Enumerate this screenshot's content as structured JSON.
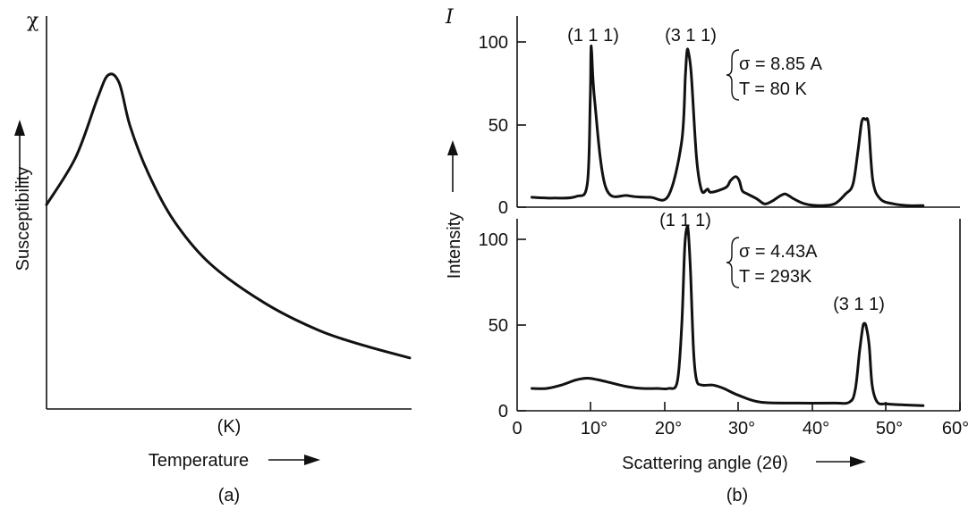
{
  "chart_data": [
    {
      "id": "a",
      "type": "line",
      "panel_label": "(a)",
      "y_symbol": "χ",
      "ylabel": "Susceptibility",
      "xlabel": "Temperature",
      "x_unit": "(K)",
      "series": [
        {
          "x": [
            0,
            0.08,
            0.14,
            0.17,
            0.2,
            0.23,
            0.28,
            0.35,
            0.45,
            0.6,
            0.75,
            0.88,
            1.0
          ],
          "y": [
            0.52,
            0.64,
            0.79,
            0.85,
            0.83,
            0.72,
            0.6,
            0.48,
            0.37,
            0.27,
            0.2,
            0.16,
            0.13
          ]
        }
      ]
    },
    {
      "id": "b",
      "type": "line",
      "panel_label": "(b)",
      "y_symbol": "I",
      "ylabel": "Intensity",
      "xlabel": "Scattering angle (2θ)",
      "x_ticks": [
        "0",
        "10°",
        "20°",
        "30°",
        "40°",
        "50°",
        "60°"
      ],
      "xlim": [
        0,
        60
      ],
      "panels": [
        {
          "ylim": [
            0,
            110
          ],
          "y_ticks": [
            "0",
            "50",
            "100"
          ],
          "params": [
            "σ = 8.85 A",
            "T = 80 K"
          ],
          "peaks": [
            {
              "label": "(1 1 1)",
              "x": 10,
              "y": 94
            },
            {
              "label": "(3 1 1)",
              "x": 23,
              "y": 94
            }
          ],
          "x": [
            2,
            5,
            8,
            9.5,
            9.9,
            10,
            10.1,
            10.5,
            12,
            15,
            18,
            20.5,
            22.3,
            22.8,
            23,
            23.2,
            23.6,
            24.3,
            25,
            25.8,
            26.3,
            28.3,
            28.9,
            29.6,
            30.1,
            30.5,
            31.2,
            32.5,
            33.5,
            34.5,
            35.5,
            36.2,
            36.8,
            37.5,
            39,
            41,
            43,
            44.5,
            45.5,
            46.2,
            46.7,
            47.2,
            47.6,
            48.2,
            49.2,
            51,
            53,
            55
          ],
          "y": [
            6,
            5.5,
            6.5,
            14,
            65,
            94,
            94,
            65,
            12,
            7,
            6,
            7,
            40,
            80,
            94,
            94,
            80,
            30,
            10,
            11,
            9,
            12,
            16,
            18.5,
            16,
            10,
            8,
            5,
            2,
            3.5,
            6.5,
            8,
            7,
            5,
            2,
            1,
            2,
            8,
            14,
            35,
            52,
            53,
            50,
            16,
            5,
            2,
            1,
            1
          ]
        },
        {
          "ylim": [
            0,
            110
          ],
          "y_ticks": [
            "0",
            "50",
            "100"
          ],
          "params": [
            "σ = 4.43A",
            "T = 293K"
          ],
          "peaks": [
            {
              "label": "(1 1 1)",
              "x": 23,
              "y": 107
            },
            {
              "label": "(3 1 1)",
              "x": 47,
              "y": 51
            }
          ],
          "x": [
            2,
            4,
            6,
            8,
            9.5,
            11,
            13,
            15,
            17,
            19,
            20.5,
            21.7,
            22.3,
            22.7,
            23,
            23.2,
            23.5,
            23.9,
            24.3,
            25,
            26.5,
            28,
            30,
            33,
            38,
            43,
            45,
            45.8,
            46.4,
            46.8,
            47,
            47.3,
            47.7,
            48.1,
            48.8,
            50,
            52,
            55
          ],
          "y": [
            13,
            13,
            15,
            18,
            19,
            18,
            16,
            14,
            13,
            13,
            13,
            17,
            50,
            95,
            107,
            104,
            80,
            35,
            18,
            15,
            15,
            13,
            9,
            5,
            4.5,
            4.5,
            5,
            12,
            35,
            48,
            51,
            49,
            38,
            15,
            5,
            4,
            3.5,
            3
          ]
        }
      ]
    }
  ]
}
